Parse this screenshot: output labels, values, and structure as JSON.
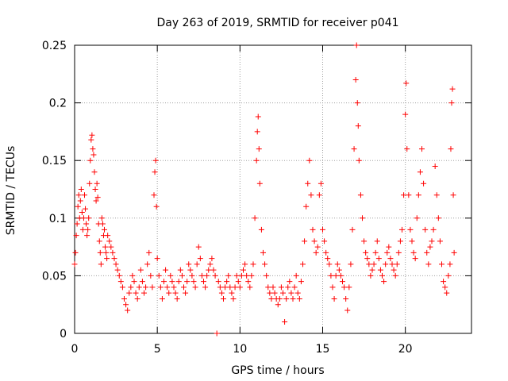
{
  "chart_data": {
    "type": "scatter",
    "title": "Day 263 of 2019, SRMTID for receiver p041",
    "xlabel": "GPS time / hours",
    "ylabel": "SRMTID / TECUs",
    "xlim": [
      0,
      24
    ],
    "ylim": [
      0,
      0.25
    ],
    "x_ticks": [
      0,
      5,
      10,
      15,
      20
    ],
    "x_tick_labels": [
      "0",
      "5",
      "10",
      "15",
      "20"
    ],
    "y_ticks": [
      0,
      0.05,
      0.1,
      0.15,
      0.2,
      0.25
    ],
    "y_tick_labels": [
      "0",
      "0.05",
      "0.1",
      "0.15",
      "0.2",
      "0.25"
    ],
    "grid": true,
    "marker": "+",
    "color": "#ff0000",
    "series": [
      {
        "name": "SRMTID",
        "points": [
          [
            0.0,
            0.06
          ],
          [
            0.05,
            0.07
          ],
          [
            0.1,
            0.085
          ],
          [
            0.15,
            0.095
          ],
          [
            0.2,
            0.11
          ],
          [
            0.25,
            0.12
          ],
          [
            0.3,
            0.1
          ],
          [
            0.35,
            0.115
          ],
          [
            0.4,
            0.125
          ],
          [
            0.45,
            0.105
          ],
          [
            0.5,
            0.09
          ],
          [
            0.55,
            0.1
          ],
          [
            0.6,
            0.12
          ],
          [
            0.65,
            0.108
          ],
          [
            0.7,
            0.095
          ],
          [
            0.75,
            0.085
          ],
          [
            0.8,
            0.09
          ],
          [
            0.85,
            0.1
          ],
          [
            0.9,
            0.13
          ],
          [
            0.95,
            0.15
          ],
          [
            1.0,
            0.168
          ],
          [
            1.05,
            0.172
          ],
          [
            1.1,
            0.16
          ],
          [
            1.15,
            0.155
          ],
          [
            1.2,
            0.14
          ],
          [
            1.25,
            0.125
          ],
          [
            1.3,
            0.115
          ],
          [
            1.35,
            0.13
          ],
          [
            1.4,
            0.118
          ],
          [
            1.45,
            0.095
          ],
          [
            1.5,
            0.08
          ],
          [
            1.55,
            0.07
          ],
          [
            1.6,
            0.06
          ],
          [
            1.65,
            0.1
          ],
          [
            1.7,
            0.095
          ],
          [
            1.75,
            0.085
          ],
          [
            1.8,
            0.09
          ],
          [
            1.85,
            0.075
          ],
          [
            1.9,
            0.07
          ],
          [
            1.95,
            0.065
          ],
          [
            2.0,
            0.085
          ],
          [
            2.1,
            0.08
          ],
          [
            2.2,
            0.075
          ],
          [
            2.3,
            0.07
          ],
          [
            2.4,
            0.065
          ],
          [
            2.5,
            0.06
          ],
          [
            2.6,
            0.055
          ],
          [
            2.7,
            0.05
          ],
          [
            2.8,
            0.045
          ],
          [
            2.9,
            0.04
          ],
          [
            3.0,
            0.03
          ],
          [
            3.1,
            0.025
          ],
          [
            3.2,
            0.02
          ],
          [
            3.3,
            0.035
          ],
          [
            3.4,
            0.04
          ],
          [
            3.5,
            0.05
          ],
          [
            3.6,
            0.045
          ],
          [
            3.7,
            0.035
          ],
          [
            3.8,
            0.03
          ],
          [
            3.9,
            0.04
          ],
          [
            4.0,
            0.055
          ],
          [
            4.1,
            0.045
          ],
          [
            4.2,
            0.035
          ],
          [
            4.3,
            0.04
          ],
          [
            4.4,
            0.06
          ],
          [
            4.5,
            0.07
          ],
          [
            4.6,
            0.05
          ],
          [
            4.7,
            0.04
          ],
          [
            4.8,
            0.12
          ],
          [
            4.85,
            0.14
          ],
          [
            4.9,
            0.15
          ],
          [
            4.95,
            0.11
          ],
          [
            5.0,
            0.065
          ],
          [
            5.1,
            0.05
          ],
          [
            5.2,
            0.04
          ],
          [
            5.3,
            0.03
          ],
          [
            5.4,
            0.045
          ],
          [
            5.5,
            0.055
          ],
          [
            5.6,
            0.04
          ],
          [
            5.7,
            0.035
          ],
          [
            5.8,
            0.05
          ],
          [
            5.9,
            0.045
          ],
          [
            6.0,
            0.04
          ],
          [
            6.1,
            0.035
          ],
          [
            6.2,
            0.03
          ],
          [
            6.3,
            0.045
          ],
          [
            6.4,
            0.055
          ],
          [
            6.5,
            0.05
          ],
          [
            6.6,
            0.04
          ],
          [
            6.7,
            0.035
          ],
          [
            6.8,
            0.045
          ],
          [
            6.9,
            0.06
          ],
          [
            7.0,
            0.055
          ],
          [
            7.1,
            0.05
          ],
          [
            7.2,
            0.045
          ],
          [
            7.3,
            0.04
          ],
          [
            7.4,
            0.06
          ],
          [
            7.5,
            0.075
          ],
          [
            7.6,
            0.065
          ],
          [
            7.7,
            0.05
          ],
          [
            7.8,
            0.045
          ],
          [
            7.9,
            0.04
          ],
          [
            8.0,
            0.05
          ],
          [
            8.1,
            0.055
          ],
          [
            8.2,
            0.06
          ],
          [
            8.3,
            0.065
          ],
          [
            8.4,
            0.055
          ],
          [
            8.5,
            0.05
          ],
          [
            8.6,
            0.0
          ],
          [
            8.7,
            0.045
          ],
          [
            8.8,
            0.04
          ],
          [
            8.9,
            0.035
          ],
          [
            9.0,
            0.03
          ],
          [
            9.1,
            0.04
          ],
          [
            9.2,
            0.045
          ],
          [
            9.3,
            0.05
          ],
          [
            9.4,
            0.04
          ],
          [
            9.5,
            0.035
          ],
          [
            9.6,
            0.03
          ],
          [
            9.7,
            0.04
          ],
          [
            9.8,
            0.05
          ],
          [
            9.9,
            0.045
          ],
          [
            10.0,
            0.04
          ],
          [
            10.1,
            0.05
          ],
          [
            10.2,
            0.055
          ],
          [
            10.3,
            0.06
          ],
          [
            10.4,
            0.05
          ],
          [
            10.5,
            0.045
          ],
          [
            10.6,
            0.04
          ],
          [
            10.7,
            0.05
          ],
          [
            10.8,
            0.06
          ],
          [
            10.9,
            0.1
          ],
          [
            11.0,
            0.15
          ],
          [
            11.05,
            0.175
          ],
          [
            11.1,
            0.188
          ],
          [
            11.15,
            0.16
          ],
          [
            11.2,
            0.13
          ],
          [
            11.3,
            0.09
          ],
          [
            11.4,
            0.07
          ],
          [
            11.5,
            0.06
          ],
          [
            11.6,
            0.05
          ],
          [
            11.7,
            0.04
          ],
          [
            11.8,
            0.035
          ],
          [
            11.9,
            0.03
          ],
          [
            12.0,
            0.04
          ],
          [
            12.1,
            0.035
          ],
          [
            12.2,
            0.03
          ],
          [
            12.3,
            0.025
          ],
          [
            12.4,
            0.03
          ],
          [
            12.5,
            0.04
          ],
          [
            12.6,
            0.035
          ],
          [
            12.7,
            0.01
          ],
          [
            12.8,
            0.03
          ],
          [
            12.9,
            0.04
          ],
          [
            13.0,
            0.045
          ],
          [
            13.1,
            0.035
          ],
          [
            13.2,
            0.03
          ],
          [
            13.3,
            0.04
          ],
          [
            13.4,
            0.05
          ],
          [
            13.5,
            0.035
          ],
          [
            13.6,
            0.03
          ],
          [
            13.7,
            0.045
          ],
          [
            13.8,
            0.06
          ],
          [
            13.9,
            0.08
          ],
          [
            14.0,
            0.11
          ],
          [
            14.1,
            0.13
          ],
          [
            14.2,
            0.15
          ],
          [
            14.3,
            0.12
          ],
          [
            14.4,
            0.09
          ],
          [
            14.5,
            0.08
          ],
          [
            14.6,
            0.07
          ],
          [
            14.7,
            0.075
          ],
          [
            14.8,
            0.12
          ],
          [
            14.9,
            0.13
          ],
          [
            15.0,
            0.09
          ],
          [
            15.1,
            0.08
          ],
          [
            15.2,
            0.07
          ],
          [
            15.3,
            0.065
          ],
          [
            15.4,
            0.06
          ],
          [
            15.5,
            0.05
          ],
          [
            15.6,
            0.04
          ],
          [
            15.7,
            0.03
          ],
          [
            15.8,
            0.05
          ],
          [
            15.9,
            0.06
          ],
          [
            16.0,
            0.055
          ],
          [
            16.1,
            0.05
          ],
          [
            16.2,
            0.045
          ],
          [
            16.3,
            0.04
          ],
          [
            16.4,
            0.03
          ],
          [
            16.5,
            0.02
          ],
          [
            16.6,
            0.04
          ],
          [
            16.7,
            0.06
          ],
          [
            16.8,
            0.09
          ],
          [
            16.9,
            0.16
          ],
          [
            17.0,
            0.22
          ],
          [
            17.05,
            0.25
          ],
          [
            17.1,
            0.2
          ],
          [
            17.15,
            0.18
          ],
          [
            17.2,
            0.15
          ],
          [
            17.3,
            0.12
          ],
          [
            17.4,
            0.1
          ],
          [
            17.5,
            0.08
          ],
          [
            17.6,
            0.07
          ],
          [
            17.7,
            0.065
          ],
          [
            17.8,
            0.06
          ],
          [
            17.9,
            0.05
          ],
          [
            18.0,
            0.055
          ],
          [
            18.1,
            0.06
          ],
          [
            18.2,
            0.07
          ],
          [
            18.3,
            0.08
          ],
          [
            18.4,
            0.065
          ],
          [
            18.5,
            0.055
          ],
          [
            18.6,
            0.05
          ],
          [
            18.7,
            0.045
          ],
          [
            18.8,
            0.06
          ],
          [
            18.9,
            0.07
          ],
          [
            19.0,
            0.075
          ],
          [
            19.1,
            0.065
          ],
          [
            19.2,
            0.06
          ],
          [
            19.3,
            0.055
          ],
          [
            19.4,
            0.05
          ],
          [
            19.5,
            0.06
          ],
          [
            19.6,
            0.07
          ],
          [
            19.7,
            0.08
          ],
          [
            19.8,
            0.09
          ],
          [
            19.9,
            0.12
          ],
          [
            20.0,
            0.19
          ],
          [
            20.05,
            0.217
          ],
          [
            20.1,
            0.16
          ],
          [
            20.2,
            0.12
          ],
          [
            20.3,
            0.09
          ],
          [
            20.4,
            0.08
          ],
          [
            20.5,
            0.07
          ],
          [
            20.6,
            0.065
          ],
          [
            20.7,
            0.1
          ],
          [
            20.8,
            0.12
          ],
          [
            20.9,
            0.14
          ],
          [
            21.0,
            0.16
          ],
          [
            21.1,
            0.13
          ],
          [
            21.2,
            0.09
          ],
          [
            21.3,
            0.07
          ],
          [
            21.4,
            0.06
          ],
          [
            21.5,
            0.075
          ],
          [
            21.6,
            0.08
          ],
          [
            21.7,
            0.09
          ],
          [
            21.8,
            0.145
          ],
          [
            21.9,
            0.12
          ],
          [
            22.0,
            0.1
          ],
          [
            22.1,
            0.08
          ],
          [
            22.2,
            0.06
          ],
          [
            22.3,
            0.045
          ],
          [
            22.4,
            0.04
          ],
          [
            22.5,
            0.035
          ],
          [
            22.6,
            0.05
          ],
          [
            22.7,
            0.06
          ],
          [
            22.75,
            0.16
          ],
          [
            22.8,
            0.2
          ],
          [
            22.85,
            0.212
          ],
          [
            22.9,
            0.12
          ],
          [
            22.95,
            0.07
          ]
        ]
      }
    ]
  }
}
